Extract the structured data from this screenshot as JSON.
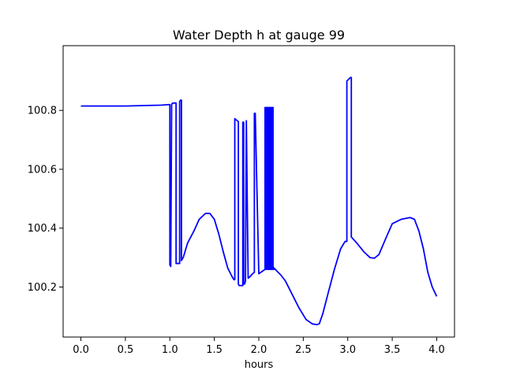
{
  "chart_data": {
    "type": "line",
    "title": "Water Depth h at gauge 99",
    "xlabel": "hours",
    "ylabel": "",
    "xlim": [
      -0.2,
      4.2
    ],
    "ylim": [
      100.03,
      101.02
    ],
    "x_ticks": [
      0.0,
      0.5,
      1.0,
      1.5,
      2.0,
      2.5,
      3.0,
      3.5,
      4.0
    ],
    "x_tick_labels": [
      "0.0",
      "0.5",
      "1.0",
      "1.5",
      "2.0",
      "2.5",
      "3.0",
      "3.5",
      "4.0"
    ],
    "y_ticks": [
      100.2,
      100.4,
      100.6,
      100.8
    ],
    "y_tick_labels": [
      "100.2",
      "100.4",
      "100.6",
      "100.8"
    ],
    "grid": false,
    "series": [
      {
        "color": "#0000ff",
        "x": [
          0.0,
          0.5,
          0.9,
          1.0,
          1.0,
          1.01,
          1.02,
          1.03,
          1.06,
          1.07,
          1.07,
          1.09,
          1.11,
          1.11,
          1.12,
          1.13,
          1.13,
          1.15,
          1.2,
          1.27,
          1.33,
          1.4,
          1.45,
          1.5,
          1.55,
          1.6,
          1.65,
          1.7,
          1.72,
          1.73,
          1.73,
          1.77,
          1.77,
          1.78,
          1.8,
          1.82,
          1.82,
          1.83,
          1.83,
          1.84,
          1.85,
          1.86,
          1.86,
          1.88,
          1.88,
          1.9,
          1.93,
          1.95,
          1.95,
          1.96,
          2.0,
          2.07,
          2.07,
          2.08,
          2.08,
          2.09,
          2.09,
          2.1,
          2.1,
          2.11,
          2.11,
          2.12,
          2.12,
          2.13,
          2.13,
          2.14,
          2.14,
          2.15,
          2.15,
          2.16,
          2.16,
          2.17,
          2.17,
          2.2,
          2.25,
          2.3,
          2.35,
          2.45,
          2.53,
          2.6,
          2.65,
          2.68,
          2.72,
          2.78,
          2.85,
          2.92,
          2.97,
          2.99,
          2.99,
          3.03,
          3.04,
          3.04,
          3.1,
          3.18,
          3.25,
          3.3,
          3.35,
          3.42,
          3.5,
          3.6,
          3.7,
          3.75,
          3.8,
          3.85,
          3.9,
          3.95,
          4.0
        ],
        "y": [
          100.815,
          100.815,
          100.818,
          100.82,
          100.275,
          100.27,
          100.82,
          100.825,
          100.825,
          100.825,
          100.28,
          100.28,
          100.28,
          100.83,
          100.835,
          100.835,
          100.29,
          100.3,
          100.35,
          100.39,
          100.43,
          100.45,
          100.45,
          100.43,
          100.38,
          100.32,
          100.265,
          100.235,
          100.225,
          100.225,
          100.772,
          100.762,
          100.21,
          100.205,
          100.205,
          100.205,
          100.76,
          100.76,
          100.21,
          100.21,
          100.22,
          100.765,
          100.765,
          100.23,
          100.23,
          100.235,
          100.245,
          100.25,
          100.79,
          100.79,
          100.245,
          100.26,
          100.81,
          100.81,
          100.26,
          100.26,
          100.81,
          100.81,
          100.26,
          100.26,
          100.81,
          100.81,
          100.26,
          100.26,
          100.81,
          100.81,
          100.26,
          100.26,
          100.81,
          100.81,
          100.26,
          100.26,
          100.265,
          100.255,
          100.24,
          100.22,
          100.19,
          100.13,
          100.09,
          100.075,
          100.072,
          100.075,
          100.11,
          100.18,
          100.26,
          100.33,
          100.355,
          100.355,
          100.9,
          100.912,
          100.912,
          100.37,
          100.35,
          100.32,
          100.3,
          100.298,
          100.31,
          100.36,
          100.415,
          100.43,
          100.436,
          100.43,
          100.39,
          100.33,
          100.25,
          100.2,
          100.168
        ]
      }
    ]
  }
}
